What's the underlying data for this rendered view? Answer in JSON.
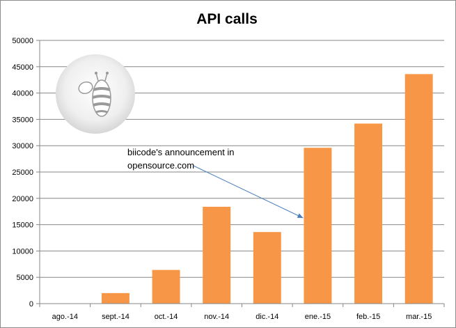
{
  "chart_data": {
    "type": "bar",
    "title": "API calls",
    "xlabel": "",
    "ylabel": "",
    "categories": [
      "ago.-14",
      "sept.-14",
      "oct.-14",
      "nov.-14",
      "dic.-14",
      "ene.-15",
      "feb.-15",
      "mar.-15"
    ],
    "values": [
      0,
      2000,
      6400,
      18400,
      13600,
      29600,
      34200,
      43600
    ],
    "ylim": [
      0,
      50000
    ],
    "yticks": [
      "0",
      "5000",
      "10000",
      "15000",
      "20000",
      "25000",
      "30000",
      "35000",
      "40000",
      "45000",
      "50000"
    ],
    "grid": true,
    "legend": "none",
    "bar_color": "#f79646",
    "annotation": {
      "lines": [
        "biicode's announcement in",
        "opensource.com"
      ],
      "target_category": "ene.-15"
    }
  },
  "logo": {
    "icon": "bee-icon"
  }
}
